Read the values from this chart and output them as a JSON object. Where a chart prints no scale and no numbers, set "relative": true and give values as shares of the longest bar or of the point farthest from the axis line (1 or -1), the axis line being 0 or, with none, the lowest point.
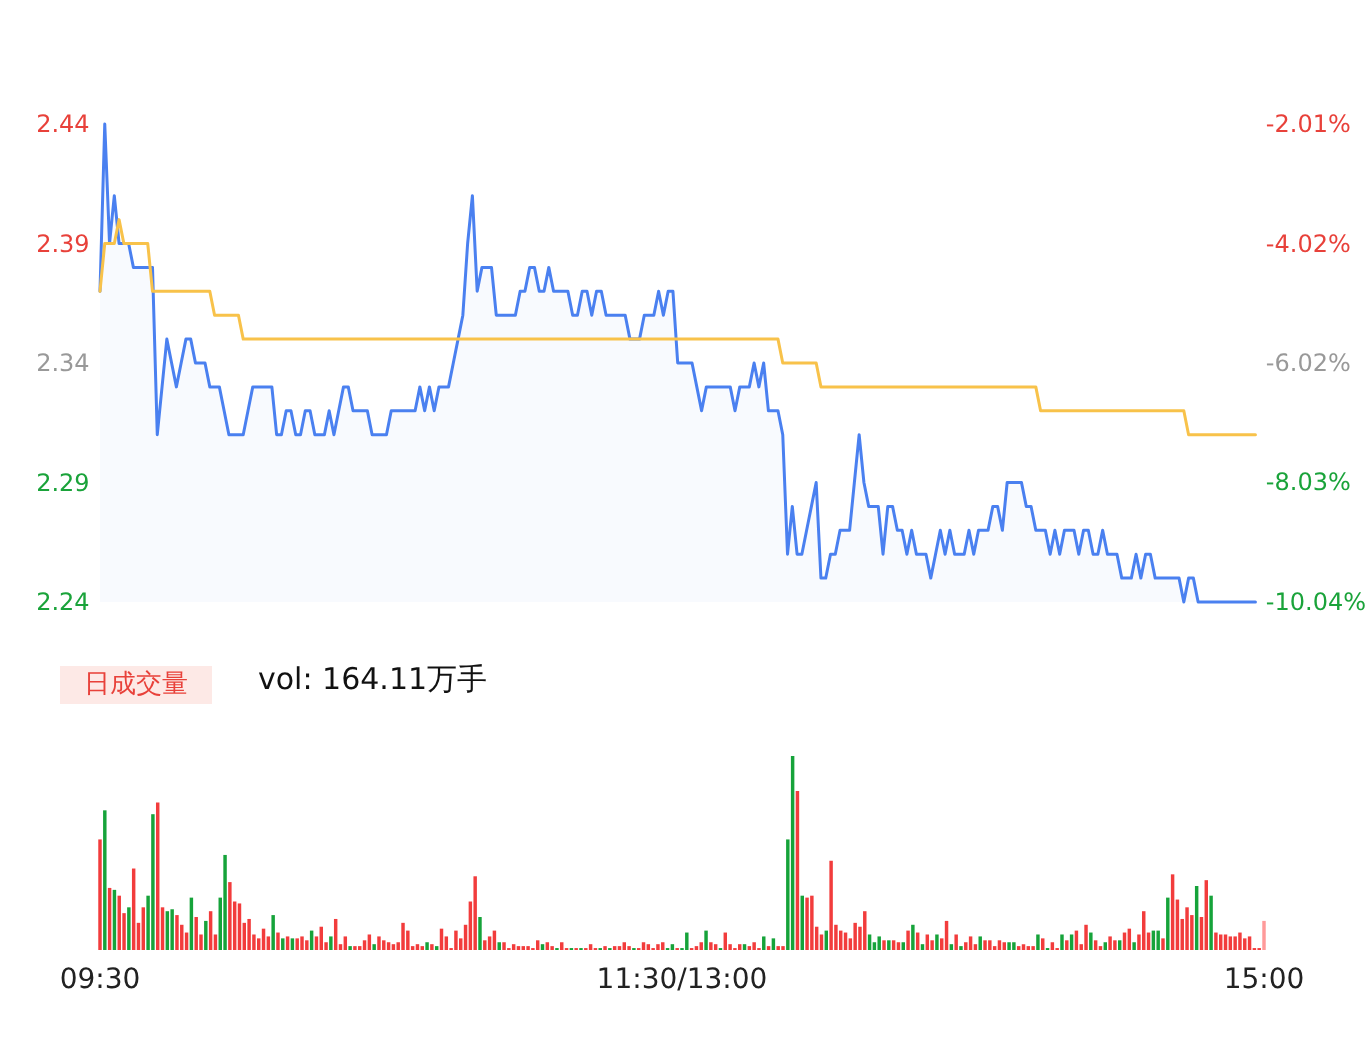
{
  "chart_data": [
    {
      "type": "line",
      "categories": [
        null,
        null,
        null,
        null,
        null,
        null,
        null,
        null,
        null,
        null,
        null,
        null,
        null,
        null,
        null,
        null,
        null,
        null,
        null,
        null,
        null,
        null,
        null,
        null,
        null,
        null,
        null,
        null,
        null,
        null,
        null,
        null,
        null,
        null,
        null,
        null,
        null,
        null,
        null,
        null,
        null,
        null,
        null,
        null,
        null,
        null,
        null,
        null,
        null,
        null,
        null,
        null,
        null,
        null,
        null,
        null,
        null,
        null,
        null,
        null,
        null,
        null,
        null,
        null,
        null,
        null,
        null,
        null,
        null,
        null,
        null,
        null,
        null,
        null,
        null,
        null,
        null,
        null,
        null,
        null,
        null,
        null,
        null,
        null,
        null,
        null,
        null,
        null,
        null,
        null,
        null,
        null,
        null,
        null,
        null,
        null,
        null,
        null,
        null,
        null,
        null,
        null,
        null,
        null,
        null,
        null,
        null,
        null,
        null,
        null,
        null,
        null,
        null,
        null,
        null,
        null,
        null,
        null,
        null,
        null,
        null,
        null,
        null,
        null,
        null,
        null,
        null,
        null,
        null,
        null,
        null,
        null,
        null,
        null,
        null,
        null,
        null,
        null,
        null,
        null,
        null,
        null,
        null,
        null,
        null,
        null,
        null,
        null,
        null,
        null,
        null,
        null,
        null,
        null,
        null,
        null,
        null,
        null,
        null,
        null,
        null,
        null,
        null,
        null,
        null,
        null,
        null,
        null,
        null,
        null,
        null,
        null,
        null,
        null,
        null,
        null,
        null,
        null,
        null,
        null,
        null,
        null,
        null,
        null,
        null,
        null,
        null,
        null,
        null,
        null,
        null,
        null,
        null,
        null,
        null,
        null,
        null,
        null,
        null,
        null,
        null,
        null,
        null,
        null,
        null,
        null,
        null,
        null,
        null,
        null,
        null,
        null,
        null,
        null,
        null,
        null,
        null,
        null,
        null,
        null,
        null,
        null,
        null,
        null,
        null,
        null,
        null,
        null,
        null,
        null,
        null,
        null,
        null,
        null,
        null,
        null,
        null,
        null,
        null,
        null,
        null,
        null,
        null
      ],
      "ylim": [
        2.24,
        2.44
      ],
      "yticks": [
        2.24,
        2.29,
        2.34,
        2.39,
        2.44
      ],
      "y2lim": [
        -10.04,
        -2.01
      ],
      "y2ticks": [
        {
          "value": -10.04,
          "label": "-10.04%"
        },
        {
          "value": -8.03,
          "label": "-8.03%"
        },
        {
          "value": -6.02,
          "label": "-6.02%"
        },
        {
          "value": -4.02,
          "label": "-4.02%"
        },
        {
          "value": -2.01,
          "label": "-2.01%"
        }
      ],
      "tick_labels": "y",
      "grid": false,
      "marker": "none",
      "series": [
        {
          "type": "area",
          "color": "#4a80f0",
          "values": [
            2.37,
            2.44,
            2.39,
            2.41,
            2.39,
            2.39,
            2.39,
            2.38,
            2.38,
            2.38,
            2.38,
            2.38,
            2.31,
            2.33,
            2.35,
            2.34,
            2.33,
            2.34,
            2.35,
            2.35,
            2.34,
            2.34,
            2.34,
            2.33,
            2.33,
            2.33,
            2.32,
            2.31,
            2.31,
            2.31,
            2.31,
            2.32,
            2.33,
            2.33,
            2.33,
            2.33,
            2.33,
            2.31,
            2.31,
            2.32,
            2.32,
            2.31,
            2.31,
            2.32,
            2.32,
            2.31,
            2.31,
            2.31,
            2.32,
            2.31,
            2.32,
            2.33,
            2.33,
            2.32,
            2.32,
            2.32,
            2.32,
            2.31,
            2.31,
            2.31,
            2.31,
            2.32,
            2.32,
            2.32,
            2.32,
            2.32,
            2.32,
            2.33,
            2.32,
            2.33,
            2.32,
            2.33,
            2.33,
            2.33,
            2.34,
            2.35,
            2.36,
            2.39,
            2.41,
            2.37,
            2.38,
            2.38,
            2.38,
            2.36,
            2.36,
            2.36,
            2.36,
            2.36,
            2.37,
            2.37,
            2.38,
            2.38,
            2.37,
            2.37,
            2.38,
            2.37,
            2.37,
            2.37,
            2.37,
            2.36,
            2.36,
            2.37,
            2.37,
            2.36,
            2.37,
            2.37,
            2.36,
            2.36,
            2.36,
            2.36,
            2.36,
            2.35,
            2.35,
            2.35,
            2.36,
            2.36,
            2.36,
            2.37,
            2.36,
            2.37,
            2.37,
            2.34,
            2.34,
            2.34,
            2.34,
            2.33,
            2.32,
            2.33,
            2.33,
            2.33,
            2.33,
            2.33,
            2.33,
            2.32,
            2.33,
            2.33,
            2.33,
            2.34,
            2.33,
            2.34,
            2.32,
            2.32,
            2.32,
            2.31,
            2.26,
            2.28,
            2.26,
            2.26,
            2.27,
            2.28,
            2.29,
            2.25,
            2.25,
            2.26,
            2.26,
            2.27,
            2.27,
            2.27,
            2.29,
            2.31,
            2.29,
            2.28,
            2.28,
            2.28,
            2.26,
            2.28,
            2.28,
            2.27,
            2.27,
            2.26,
            2.27,
            2.26,
            2.26,
            2.26,
            2.25,
            2.26,
            2.27,
            2.26,
            2.27,
            2.26,
            2.26,
            2.26,
            2.27,
            2.26,
            2.27,
            2.27,
            2.27,
            2.28,
            2.28,
            2.27,
            2.29,
            2.29,
            2.29,
            2.29,
            2.28,
            2.28,
            2.27,
            2.27,
            2.27,
            2.26,
            2.27,
            2.26,
            2.27,
            2.27,
            2.27,
            2.26,
            2.27,
            2.27,
            2.26,
            2.26,
            2.27,
            2.26,
            2.26,
            2.26,
            2.25,
            2.25,
            2.25,
            2.26,
            2.25,
            2.26,
            2.26,
            2.25,
            2.25,
            2.25,
            2.25,
            2.25,
            2.25,
            2.24,
            2.25,
            2.25,
            2.24,
            2.24,
            2.24,
            2.24,
            2.24,
            2.24,
            2.24,
            2.24,
            2.24,
            2.24,
            2.24,
            2.24,
            2.24
          ]
        },
        {
          "type": "line",
          "color": "#f8c24a",
          "values": [
            2.37,
            2.39,
            2.39,
            2.39,
            2.4,
            2.39,
            2.39,
            2.39,
            2.39,
            2.39,
            2.39,
            2.37,
            2.37,
            2.37,
            2.37,
            2.37,
            2.37,
            2.37,
            2.37,
            2.37,
            2.37,
            2.37,
            2.37,
            2.37,
            2.36,
            2.36,
            2.36,
            2.36,
            2.36,
            2.36,
            2.35,
            2.35,
            2.35,
            2.35,
            2.35,
            2.35,
            2.35,
            2.35,
            2.35,
            2.35,
            2.35,
            2.35,
            2.35,
            2.35,
            2.35,
            2.35,
            2.35,
            2.35,
            2.35,
            2.35,
            2.35,
            2.35,
            2.35,
            2.35,
            2.35,
            2.35,
            2.35,
            2.35,
            2.35,
            2.35,
            2.35,
            2.35,
            2.35,
            2.35,
            2.35,
            2.35,
            2.35,
            2.35,
            2.35,
            2.35,
            2.35,
            2.35,
            2.35,
            2.35,
            2.35,
            2.35,
            2.35,
            2.35,
            2.35,
            2.35,
            2.35,
            2.35,
            2.35,
            2.35,
            2.35,
            2.35,
            2.35,
            2.35,
            2.35,
            2.35,
            2.35,
            2.35,
            2.35,
            2.35,
            2.35,
            2.35,
            2.35,
            2.35,
            2.35,
            2.35,
            2.35,
            2.35,
            2.35,
            2.35,
            2.35,
            2.35,
            2.35,
            2.35,
            2.35,
            2.35,
            2.35,
            2.35,
            2.35,
            2.35,
            2.35,
            2.35,
            2.35,
            2.35,
            2.35,
            2.35,
            2.35,
            2.35,
            2.35,
            2.35,
            2.35,
            2.35,
            2.35,
            2.35,
            2.35,
            2.35,
            2.35,
            2.35,
            2.35,
            2.35,
            2.35,
            2.35,
            2.35,
            2.35,
            2.35,
            2.35,
            2.35,
            2.35,
            2.35,
            2.34,
            2.34,
            2.34,
            2.34,
            2.34,
            2.34,
            2.34,
            2.34,
            2.33,
            2.33,
            2.33,
            2.33,
            2.33,
            2.33,
            2.33,
            2.33,
            2.33,
            2.33,
            2.33,
            2.33,
            2.33,
            2.33,
            2.33,
            2.33,
            2.33,
            2.33,
            2.33,
            2.33,
            2.33,
            2.33,
            2.33,
            2.33,
            2.33,
            2.33,
            2.33,
            2.33,
            2.33,
            2.33,
            2.33,
            2.33,
            2.33,
            2.33,
            2.33,
            2.33,
            2.33,
            2.33,
            2.33,
            2.33,
            2.33,
            2.33,
            2.33,
            2.33,
            2.33,
            2.33,
            2.32,
            2.32,
            2.32,
            2.32,
            2.32,
            2.32,
            2.32,
            2.32,
            2.32,
            2.32,
            2.32,
            2.32,
            2.32,
            2.32,
            2.32,
            2.32,
            2.32,
            2.32,
            2.32,
            2.32,
            2.32,
            2.32,
            2.32,
            2.32,
            2.32,
            2.32,
            2.32,
            2.32,
            2.32,
            2.32,
            2.32,
            2.31,
            2.31,
            2.31,
            2.31,
            2.31,
            2.31,
            2.31,
            2.31,
            2.31,
            2.31,
            2.31,
            2.31,
            2.31,
            2.31,
            2.31
          ]
        }
      ]
    },
    {
      "type": "bar",
      "relative": true,
      "annotations": [
        "日成交量",
        "vol: 164.11万手"
      ],
      "categories": [
        "09:30",
        null,
        null,
        null,
        null,
        null,
        null,
        null,
        null,
        null,
        null,
        null,
        null,
        null,
        null,
        null,
        null,
        null,
        null,
        null,
        null,
        null,
        null,
        null,
        null,
        null,
        null,
        null,
        null,
        null,
        null,
        null,
        null,
        null,
        null,
        null,
        null,
        null,
        null,
        null,
        null,
        null,
        null,
        null,
        null,
        null,
        null,
        null,
        null,
        null,
        null,
        null,
        null,
        null,
        null,
        null,
        null,
        null,
        null,
        null,
        null,
        null,
        null,
        null,
        null,
        null,
        null,
        null,
        null,
        null,
        null,
        null,
        null,
        null,
        null,
        null,
        null,
        null,
        null,
        null,
        null,
        null,
        null,
        null,
        null,
        null,
        null,
        null,
        null,
        null,
        null,
        null,
        null,
        null,
        null,
        null,
        null,
        null,
        null,
        null,
        null,
        null,
        null,
        null,
        null,
        null,
        null,
        null,
        null,
        null,
        null,
        null,
        null,
        null,
        null,
        null,
        null,
        null,
        null,
        null,
        null,
        "11:30/13:00",
        null,
        null,
        null,
        null,
        null,
        null,
        null,
        null,
        null,
        null,
        null,
        null,
        null,
        null,
        null,
        null,
        null,
        null,
        null,
        null,
        null,
        null,
        null,
        null,
        null,
        null,
        null,
        null,
        null,
        null,
        null,
        null,
        null,
        null,
        null,
        null,
        null,
        null,
        null,
        null,
        null,
        null,
        null,
        null,
        null,
        null,
        null,
        null,
        null,
        null,
        null,
        null,
        null,
        null,
        null,
        null,
        null,
        null,
        null,
        null,
        null,
        null,
        null,
        null,
        null,
        null,
        null,
        null,
        null,
        null,
        null,
        null,
        null,
        null,
        null,
        null,
        null,
        null,
        null,
        null,
        null,
        null,
        null,
        null,
        null,
        null,
        null,
        null,
        null,
        null,
        null,
        null,
        null,
        null,
        null,
        null,
        null,
        null,
        null,
        null,
        null,
        null,
        null,
        null,
        null,
        null,
        null,
        null,
        null,
        null,
        null,
        null,
        null,
        null,
        null,
        null,
        null,
        null,
        null,
        null,
        "15:00"
      ],
      "values": [
        0.57,
        0.72,
        0.32,
        0.31,
        0.28,
        0.19,
        0.22,
        0.42,
        0.14,
        0.22,
        0.28,
        0.7,
        0.76,
        0.22,
        0.2,
        0.21,
        0.18,
        0.13,
        0.09,
        0.27,
        0.17,
        0.08,
        0.15,
        0.2,
        0.08,
        0.27,
        0.49,
        0.35,
        0.25,
        0.24,
        0.14,
        0.16,
        0.08,
        0.06,
        0.11,
        0.07,
        0.18,
        0.09,
        0.06,
        0.07,
        0.06,
        0.06,
        0.07,
        0.05,
        0.1,
        0.07,
        0.12,
        0.04,
        0.07,
        0.16,
        0.03,
        0.07,
        0.02,
        0.02,
        0.02,
        0.05,
        0.08,
        0.03,
        0.07,
        0.05,
        0.04,
        0.03,
        0.04,
        0.14,
        0.1,
        0.02,
        0.03,
        0.02,
        0.04,
        0.03,
        0.02,
        0.11,
        0.07,
        0.01,
        0.1,
        0.06,
        0.13,
        0.25,
        0.38,
        0.17,
        0.05,
        0.07,
        0.1,
        0.04,
        0.04,
        0.01,
        0.03,
        0.02,
        0.02,
        0.02,
        0.01,
        0.05,
        0.03,
        0.04,
        0.02,
        0.01,
        0.04,
        0.01,
        0.01,
        0.01,
        0.01,
        0.01,
        0.03,
        0.01,
        0.01,
        0.02,
        0.01,
        0.02,
        0.02,
        0.04,
        0.02,
        0.01,
        0.01,
        0.04,
        0.03,
        0.01,
        0.03,
        0.04,
        0.01,
        0.03,
        0.01,
        0.01,
        0.09,
        0.01,
        0.02,
        0.04,
        0.1,
        0.04,
        0.03,
        0.01,
        0.09,
        0.03,
        0.01,
        0.03,
        0.03,
        0.02,
        0.04,
        0.01,
        0.07,
        0.02,
        0.06,
        0.02,
        0.02,
        0.57,
        1,
        0.82,
        0.28,
        0.27,
        0.28,
        0.12,
        0.08,
        0.1,
        0.46,
        0.13,
        0.1,
        0.09,
        0.06,
        0.14,
        0.12,
        0.2,
        0.08,
        0.04,
        0.07,
        0.05,
        0.05,
        0.05,
        0.04,
        0.04,
        0.1,
        0.13,
        0.09,
        0.03,
        0.08,
        0.05,
        0.08,
        0.06,
        0.15,
        0.03,
        0.08,
        0.02,
        0.04,
        0.07,
        0.03,
        0.07,
        0.05,
        0.05,
        0.02,
        0.05,
        0.04,
        0.04,
        0.04,
        0.02,
        0.03,
        0.02,
        0.02,
        0.08,
        0.06,
        0.01,
        0.04,
        0.01,
        0.08,
        0.05,
        0.08,
        0.1,
        0.03,
        0.13,
        0.09,
        0.05,
        0.02,
        0.04,
        0.07,
        0.05,
        0.05,
        0.09,
        0.11,
        0.04,
        0.08,
        0.2,
        0.09,
        0.1,
        0.1,
        0.06,
        0.27,
        0.39,
        0.26,
        0.16,
        0.22,
        0.18,
        0.33,
        0.17,
        0.36,
        0.28,
        0.09,
        0.08,
        0.08,
        0.07,
        0.07,
        0.09,
        0.06,
        0.07,
        0.01,
        0.01,
        0.15
      ],
      "colors": [
        "#f23c3c",
        "#16a33a",
        "#f23c3c",
        "#16a33a",
        "#f23c3c",
        "#f23c3c",
        "#16a33a",
        "#f23c3c",
        "#f23c3c",
        "#f23c3c",
        "#16a33a",
        "#16a33a",
        "#f23c3c",
        "#f23c3c",
        "#16a33a",
        "#16a33a",
        "#f23c3c",
        "#f23c3c",
        "#f23c3c",
        "#16a33a",
        "#f23c3c",
        "#f23c3c",
        "#16a33a",
        "#f23c3c",
        "#f23c3c",
        "#16a33a",
        "#16a33a",
        "#f23c3c",
        "#f23c3c",
        "#f23c3c",
        "#f23c3c",
        "#f23c3c",
        "#f23c3c",
        "#f23c3c",
        "#f23c3c",
        "#f23c3c",
        "#16a33a",
        "#f23c3c",
        "#16a33a",
        "#f23c3c",
        "#16a33a",
        "#f23c3c",
        "#f23c3c",
        "#f23c3c",
        "#16a33a",
        "#f23c3c",
        "#f23c3c",
        "#f23c3c",
        "#16a33a",
        "#f23c3c",
        "#f23c3c",
        "#f23c3c",
        "#16a33a",
        "#f23c3c",
        "#f23c3c",
        "#f23c3c",
        "#f23c3c",
        "#16a33a",
        "#f23c3c",
        "#f23c3c",
        "#f23c3c",
        "#f23c3c",
        "#f23c3c",
        "#f23c3c",
        "#f23c3c",
        "#f23c3c",
        "#f23c3c",
        "#f23c3c",
        "#16a33a",
        "#f23c3c",
        "#16a33a",
        "#f23c3c",
        "#f23c3c",
        "#f23c3c",
        "#f23c3c",
        "#f23c3c",
        "#f23c3c",
        "#f23c3c",
        "#f23c3c",
        "#16a33a",
        "#f23c3c",
        "#f23c3c",
        "#f23c3c",
        "#16a33a",
        "#f23c3c",
        "#f23c3c",
        "#f23c3c",
        "#f23c3c",
        "#f23c3c",
        "#f23c3c",
        "#f23c3c",
        "#f23c3c",
        "#16a33a",
        "#f23c3c",
        "#f23c3c",
        "#16a33a",
        "#f23c3c",
        "#f23c3c",
        "#16a33a",
        "#f23c3c",
        "#16a33a",
        "#f23c3c",
        "#f23c3c",
        "#f23c3c",
        "#16a33a",
        "#f23c3c",
        "#16a33a",
        "#f23c3c",
        "#f23c3c",
        "#f23c3c",
        "#f23c3c",
        "#16a33a",
        "#f23c3c",
        "#f23c3c",
        "#f23c3c",
        "#f23c3c",
        "#f23c3c",
        "#f23c3c",
        "#16a33a",
        "#16a33a",
        "#f23c3c",
        "#16a33a",
        "#16a33a",
        "#f23c3c",
        "#f23c3c",
        "#f23c3c",
        "#16a33a",
        "#f23c3c",
        "#f23c3c",
        "#16a33a",
        "#f23c3c",
        "#f23c3c",
        "#f23c3c",
        "#f23c3c",
        "#16a33a",
        "#f23c3c",
        "#f23c3c",
        "#f23c3c",
        "#16a33a",
        "#f23c3c",
        "#16a33a",
        "#f23c3c",
        "#f23c3c",
        "#16a33a",
        "#16a33a",
        "#f23c3c",
        "#16a33a",
        "#f23c3c",
        "#f23c3c",
        "#f23c3c",
        "#f23c3c",
        "#16a33a",
        "#f23c3c",
        "#f23c3c",
        "#f23c3c",
        "#f23c3c",
        "#f23c3c",
        "#f23c3c",
        "#f23c3c",
        "#f23c3c",
        "#16a33a",
        "#16a33a",
        "#16a33a",
        "#f23c3c",
        "#16a33a",
        "#f23c3c",
        "#f23c3c",
        "#16a33a",
        "#f23c3c",
        "#16a33a",
        "#f23c3c",
        "#16a33a",
        "#f23c3c",
        "#f23c3c",
        "#16a33a",
        "#f23c3c",
        "#f23c3c",
        "#16a33a",
        "#f23c3c",
        "#16a33a",
        "#f23c3c",
        "#f23c3c",
        "#f23c3c",
        "#16a33a",
        "#f23c3c",
        "#f23c3c",
        "#f23c3c",
        "#f23c3c",
        "#f23c3c",
        "#16a33a",
        "#16a33a",
        "#f23c3c",
        "#f23c3c",
        "#f23c3c",
        "#f23c3c",
        "#16a33a",
        "#f23c3c",
        "#16a33a",
        "#f23c3c",
        "#f23c3c",
        "#16a33a",
        "#f23c3c",
        "#16a33a",
        "#f23c3c",
        "#f23c3c",
        "#f23c3c",
        "#16a33a",
        "#f23c3c",
        "#f23c3c",
        "#16a33a",
        "#f23c3c",
        "#f23c3c",
        "#16a33a",
        "#f23c3c",
        "#f23c3c",
        "#16a33a",
        "#f23c3c",
        "#f23c3c",
        "#f23c3c",
        "#16a33a",
        "#16a33a",
        "#f23c3c",
        "#16a33a",
        "#f23c3c",
        "#f23c3c",
        "#f23c3c",
        "#f23c3c",
        "#f23c3c",
        "#16a33a",
        "#f23c3c",
        "#f23c3c",
        "#16a33a",
        "#f23c3c",
        "#f23c3c",
        "#f23c3c",
        "#f23c3c",
        "#f23c3c",
        "#f23c3c",
        "#f23c3c",
        "#f23c3c",
        "#f23c3c",
        "#f23c3c",
        "#ff9a9a"
      ]
    }
  ]
}
